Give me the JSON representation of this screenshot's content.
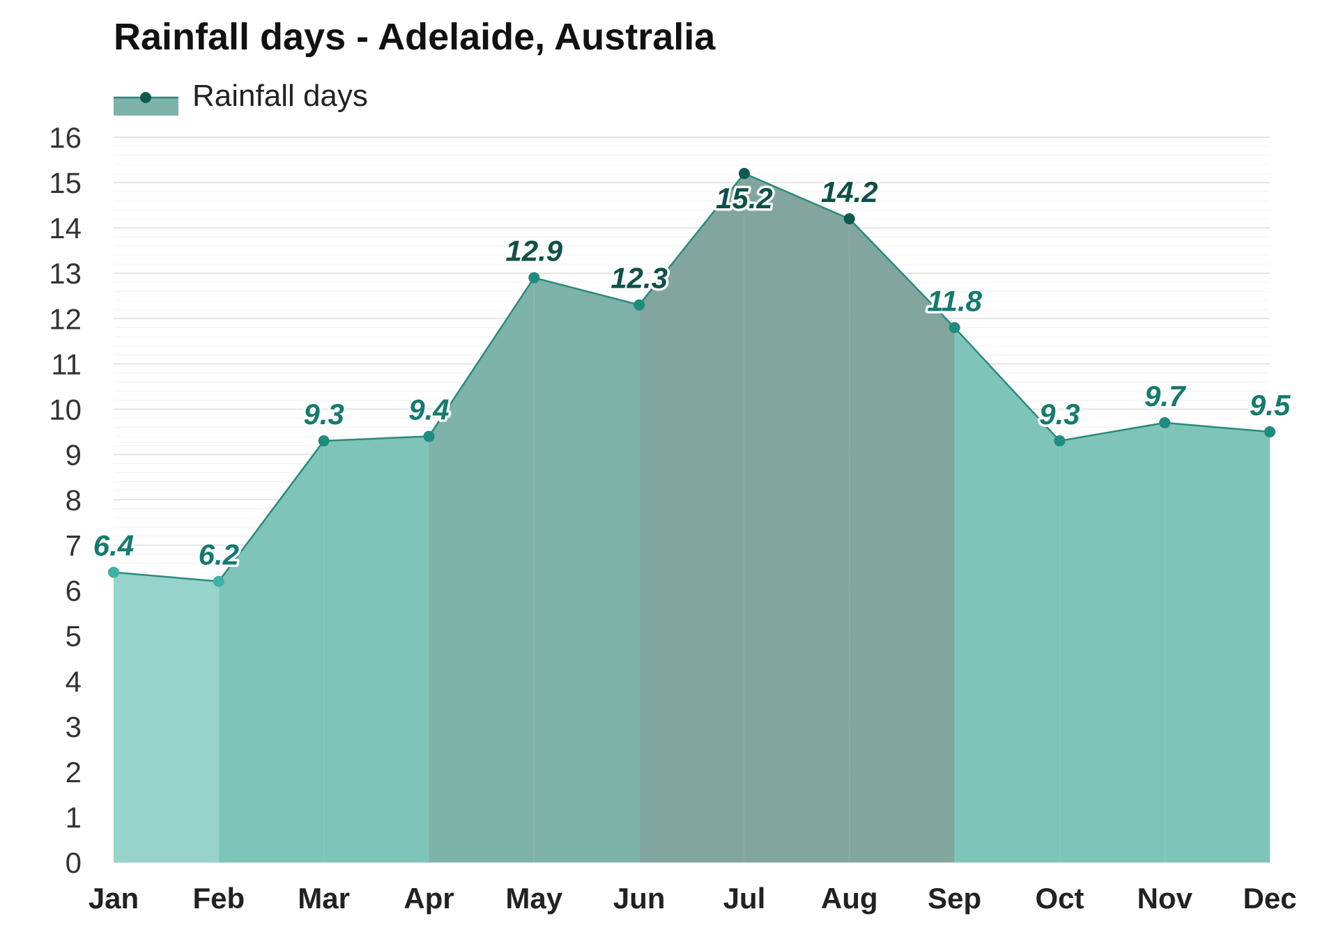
{
  "chart_data": {
    "type": "area",
    "title": "Rainfall days - Adelaide, Australia",
    "legend": {
      "position": "top-left",
      "entries": [
        "Rainfall days"
      ]
    },
    "categories": [
      "Jan",
      "Feb",
      "Mar",
      "Apr",
      "May",
      "Jun",
      "Jul",
      "Aug",
      "Sep",
      "Oct",
      "Nov",
      "Dec"
    ],
    "series": [
      {
        "name": "Rainfall days",
        "values": [
          6.4,
          6.2,
          9.3,
          9.4,
          12.9,
          12.3,
          15.2,
          14.2,
          11.8,
          9.3,
          9.7,
          9.5
        ]
      }
    ],
    "yticks": [
      0,
      1,
      2,
      3,
      4,
      5,
      6,
      7,
      8,
      9,
      10,
      11,
      12,
      13,
      14,
      15,
      16
    ],
    "ylim": [
      0,
      16
    ],
    "grid": true,
    "colors": {
      "low_fill": "#96d3cb",
      "mid_fill": "#7fc4b8",
      "high_fill": "#7db3a9",
      "peak_fill": "#82a69d",
      "line": "#2a8a7c",
      "light_marker": "#3fb1a3",
      "mid_marker": "#1e8c7e",
      "dark_marker": "#0f5a4f",
      "label_dark": "#0f5048",
      "label_mid": "#157a6e"
    }
  }
}
